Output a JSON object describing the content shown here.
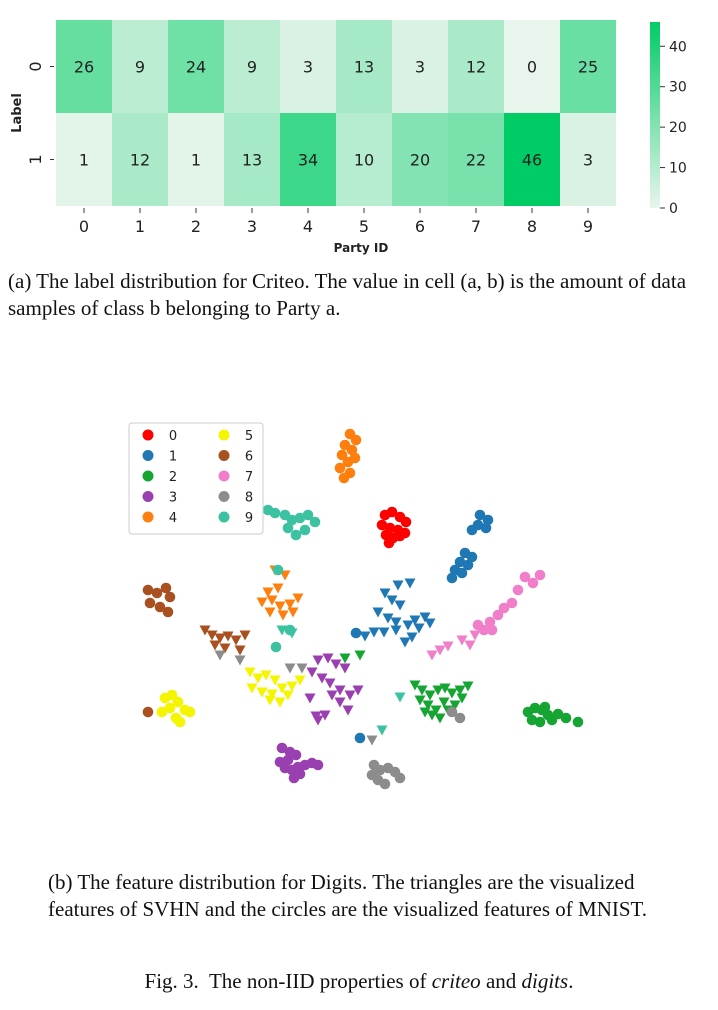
{
  "figure": {
    "caption_prefix": "Fig. 3.",
    "caption_mid": "The non-IID properties of",
    "caption_and": "and",
    "caption_em1": "criteo",
    "caption_em2": "digits",
    "caption_end": "."
  },
  "panel_a": {
    "caption": "(a) The label distribution for Criteo. The value in cell (a, b) is the amount of data samples of class b belonging to Party a.",
    "chart_data": {
      "type": "heatmap",
      "xlabel": "Party ID",
      "ylabel": "Label",
      "x_categories": [
        "0",
        "1",
        "2",
        "3",
        "4",
        "5",
        "6",
        "7",
        "8",
        "9"
      ],
      "y_categories": [
        "0",
        "1"
      ],
      "values": [
        [
          26,
          9,
          24,
          9,
          3,
          13,
          3,
          12,
          0,
          25
        ],
        [
          1,
          12,
          1,
          13,
          34,
          10,
          20,
          22,
          46,
          3
        ]
      ],
      "colorbar": {
        "min": 0,
        "max": 46,
        "ticks": [
          0,
          10,
          20,
          30,
          40
        ]
      },
      "colors": {
        "low": "#e8f5ec",
        "high": "#00cc66"
      }
    }
  },
  "panel_b": {
    "caption": "(b) The feature distribution for Digits. The triangles are the visualized features of SVHN and the circles are the visualized features of MNIST.",
    "chart_data": {
      "type": "scatter",
      "legend": [
        {
          "label": "0",
          "color": "#ff0000"
        },
        {
          "label": "1",
          "color": "#1f77b4"
        },
        {
          "label": "2",
          "color": "#16a533"
        },
        {
          "label": "3",
          "color": "#9a3fb0"
        },
        {
          "label": "4",
          "color": "#ff7f0e"
        },
        {
          "label": "5",
          "color": "#f5f500"
        },
        {
          "label": "6",
          "color": "#a85020"
        },
        {
          "label": "7",
          "color": "#f07ec8"
        },
        {
          "label": "8",
          "color": "#8c8c8c"
        },
        {
          "label": "9",
          "color": "#3cc2a0"
        }
      ],
      "legend_position": "top-left",
      "grid": false,
      "series": [
        {
          "cls": 0,
          "marker": "circle",
          "points": [
            [
              385,
              515
            ],
            [
              392,
              512
            ],
            [
              400,
              517
            ],
            [
              406,
              522
            ],
            [
              382,
              525
            ],
            [
              390,
              528
            ],
            [
              398,
              530
            ],
            [
              386,
              535
            ],
            [
              393,
              538
            ],
            [
              400,
              536
            ],
            [
              405,
              533
            ],
            [
              389,
              543
            ]
          ]
        },
        {
          "cls": 1,
          "marker": "circle",
          "points": [
            [
              480,
              515
            ],
            [
              488,
              520
            ],
            [
              478,
              525
            ],
            [
              486,
              528
            ],
            [
              472,
              530
            ],
            [
              465,
              553
            ],
            [
              472,
              557
            ],
            [
              460,
              562
            ],
            [
              468,
              565
            ],
            [
              455,
              570
            ],
            [
              462,
              573
            ],
            [
              452,
              578
            ]
          ]
        },
        {
          "cls": 1,
          "marker": "triangle",
          "points": [
            [
              398,
              585
            ],
            [
              410,
              583
            ],
            [
              385,
              593
            ],
            [
              392,
              600
            ],
            [
              400,
              605
            ],
            [
              378,
              612
            ],
            [
              388,
              618
            ],
            [
              396,
              622
            ],
            [
              408,
              625
            ],
            [
              415,
              620
            ],
            [
              425,
              617
            ],
            [
              430,
              623
            ],
            [
              374,
              632
            ],
            [
              365,
              636
            ],
            [
              384,
              632
            ],
            [
              396,
              630
            ],
            [
              405,
              642
            ],
            [
              412,
              637
            ],
            [
              419,
              628
            ]
          ]
        },
        {
          "cls": 1,
          "marker": "circle",
          "points": [
            [
              356,
              633
            ],
            [
              360,
              738
            ]
          ]
        },
        {
          "cls": 2,
          "marker": "circle",
          "points": [
            [
              528,
              712
            ],
            [
              535,
              708
            ],
            [
              542,
              710
            ],
            [
              548,
              715
            ],
            [
              532,
              720
            ],
            [
              540,
              722
            ],
            [
              552,
              720
            ],
            [
              558,
              714
            ],
            [
              566,
              718
            ],
            [
              578,
              722
            ],
            [
              545,
              707
            ]
          ]
        },
        {
          "cls": 2,
          "marker": "triangle",
          "points": [
            [
              415,
              685
            ],
            [
              422,
              690
            ],
            [
              430,
              695
            ],
            [
              438,
              690
            ],
            [
              445,
              688
            ],
            [
              452,
              693
            ],
            [
              460,
              690
            ],
            [
              468,
              686
            ],
            [
              428,
              705
            ],
            [
              436,
              710
            ],
            [
              444,
              702
            ],
            [
              420,
              700
            ],
            [
              432,
              715
            ],
            [
              440,
              718
            ],
            [
              448,
              710
            ],
            [
              425,
              712
            ],
            [
              455,
              705
            ],
            [
              462,
              698
            ],
            [
              345,
              658
            ],
            [
              360,
              655
            ]
          ]
        },
        {
          "cls": 3,
          "marker": "circle",
          "points": [
            [
              282,
              748
            ],
            [
              290,
              752
            ],
            [
              296,
              755
            ],
            [
              288,
              760
            ],
            [
              280,
              762
            ],
            [
              285,
              768
            ],
            [
              292,
              770
            ],
            [
              298,
              767
            ],
            [
              305,
              765
            ],
            [
              312,
              763
            ],
            [
              318,
              765
            ],
            [
              300,
              774
            ],
            [
              294,
              778
            ]
          ]
        },
        {
          "cls": 3,
          "marker": "triangle",
          "points": [
            [
              318,
              660
            ],
            [
              328,
              658
            ],
            [
              336,
              664
            ],
            [
              345,
              668
            ],
            [
              312,
              672
            ],
            [
              322,
              678
            ],
            [
              330,
              683
            ],
            [
              340,
              690
            ],
            [
              350,
              695
            ],
            [
              358,
              690
            ],
            [
              340,
              702
            ],
            [
              348,
              710
            ],
            [
              318,
              720
            ],
            [
              325,
              715
            ],
            [
              332,
              695
            ],
            [
              310,
              698
            ],
            [
              316,
              716
            ]
          ]
        },
        {
          "cls": 4,
          "marker": "circle",
          "points": [
            [
              350,
              434
            ],
            [
              356,
              440
            ],
            [
              345,
              445
            ],
            [
              352,
              450
            ],
            [
              342,
              455
            ],
            [
              348,
              462
            ],
            [
              355,
              458
            ],
            [
              340,
              468
            ],
            [
              350,
              473
            ],
            [
              344,
              478
            ]
          ]
        },
        {
          "cls": 4,
          "marker": "triangle",
          "points": [
            [
              275,
              570
            ],
            [
              285,
              575
            ],
            [
              268,
              592
            ],
            [
              278,
              588
            ],
            [
              262,
              602
            ],
            [
              272,
              600
            ],
            [
              280,
              606
            ],
            [
              290,
              604
            ],
            [
              298,
              598
            ],
            [
              270,
              612
            ],
            [
              283,
              615
            ],
            [
              293,
              612
            ]
          ]
        },
        {
          "cls": 5,
          "marker": "circle",
          "points": [
            [
              165,
              698
            ],
            [
              172,
              695
            ],
            [
              178,
              702
            ],
            [
              185,
              710
            ],
            [
              170,
              708
            ],
            [
              162,
              712
            ],
            [
              176,
              718
            ],
            [
              190,
              712
            ],
            [
              180,
              722
            ]
          ]
        },
        {
          "cls": 5,
          "marker": "triangle",
          "points": [
            [
              250,
              672
            ],
            [
              258,
              678
            ],
            [
              266,
              675
            ],
            [
              275,
              680
            ],
            [
              252,
              688
            ],
            [
              262,
              692
            ],
            [
              272,
              694
            ],
            [
              282,
              688
            ],
            [
              292,
              686
            ],
            [
              300,
              680
            ],
            [
              270,
              700
            ],
            [
              280,
              702
            ],
            [
              288,
              695
            ]
          ]
        },
        {
          "cls": 6,
          "marker": "circle",
          "points": [
            [
              148,
              590
            ],
            [
              157,
              593
            ],
            [
              166,
              588
            ],
            [
              170,
              597
            ],
            [
              150,
              603
            ],
            [
              160,
              607
            ],
            [
              168,
              612
            ],
            [
              148,
              712
            ]
          ]
        },
        {
          "cls": 6,
          "marker": "triangle",
          "points": [
            [
              205,
              630
            ],
            [
              212,
              635
            ],
            [
              220,
              638
            ],
            [
              228,
              636
            ],
            [
              236,
              640
            ],
            [
              245,
              635
            ],
            [
              215,
              645
            ],
            [
              225,
              648
            ],
            [
              240,
              650
            ]
          ]
        },
        {
          "cls": 7,
          "marker": "circle",
          "points": [
            [
              525,
              577
            ],
            [
              533,
              583
            ],
            [
              540,
              575
            ],
            [
              518,
              590
            ],
            [
              512,
              603
            ],
            [
              504,
              608
            ],
            [
              498,
              615
            ],
            [
              490,
              622
            ],
            [
              484,
              630
            ],
            [
              478,
              625
            ],
            [
              492,
              630
            ]
          ]
        },
        {
          "cls": 7,
          "marker": "triangle",
          "points": [
            [
              462,
              640
            ],
            [
              470,
              645
            ],
            [
              432,
              655
            ],
            [
              440,
              650
            ],
            [
              448,
              646
            ],
            [
              475,
              635
            ]
          ]
        },
        {
          "cls": 8,
          "marker": "circle",
          "points": [
            [
              374,
              765
            ],
            [
              380,
              770
            ],
            [
              388,
              768
            ],
            [
              395,
              772
            ],
            [
              400,
              778
            ],
            [
              378,
              780
            ],
            [
              385,
              784
            ],
            [
              372,
              775
            ],
            [
              452,
              712
            ],
            [
              460,
              718
            ]
          ]
        },
        {
          "cls": 8,
          "marker": "triangle",
          "points": [
            [
              220,
              655
            ],
            [
              240,
              660
            ],
            [
              290,
              668
            ],
            [
              302,
              668
            ],
            [
              372,
              740
            ]
          ]
        },
        {
          "cls": 9,
          "marker": "circle",
          "points": [
            [
              268,
              510
            ],
            [
              275,
              513
            ],
            [
              285,
              515
            ],
            [
              292,
              520
            ],
            [
              300,
              518
            ],
            [
              308,
              515
            ],
            [
              315,
              522
            ],
            [
              288,
              528
            ],
            [
              296,
              535
            ],
            [
              305,
              530
            ],
            [
              278,
              570
            ],
            [
              290,
              630
            ],
            [
              276,
              647
            ]
          ]
        },
        {
          "cls": 9,
          "marker": "triangle",
          "points": [
            [
              282,
              630
            ],
            [
              292,
              633
            ],
            [
              400,
              697
            ],
            [
              382,
              730
            ]
          ]
        }
      ]
    }
  }
}
